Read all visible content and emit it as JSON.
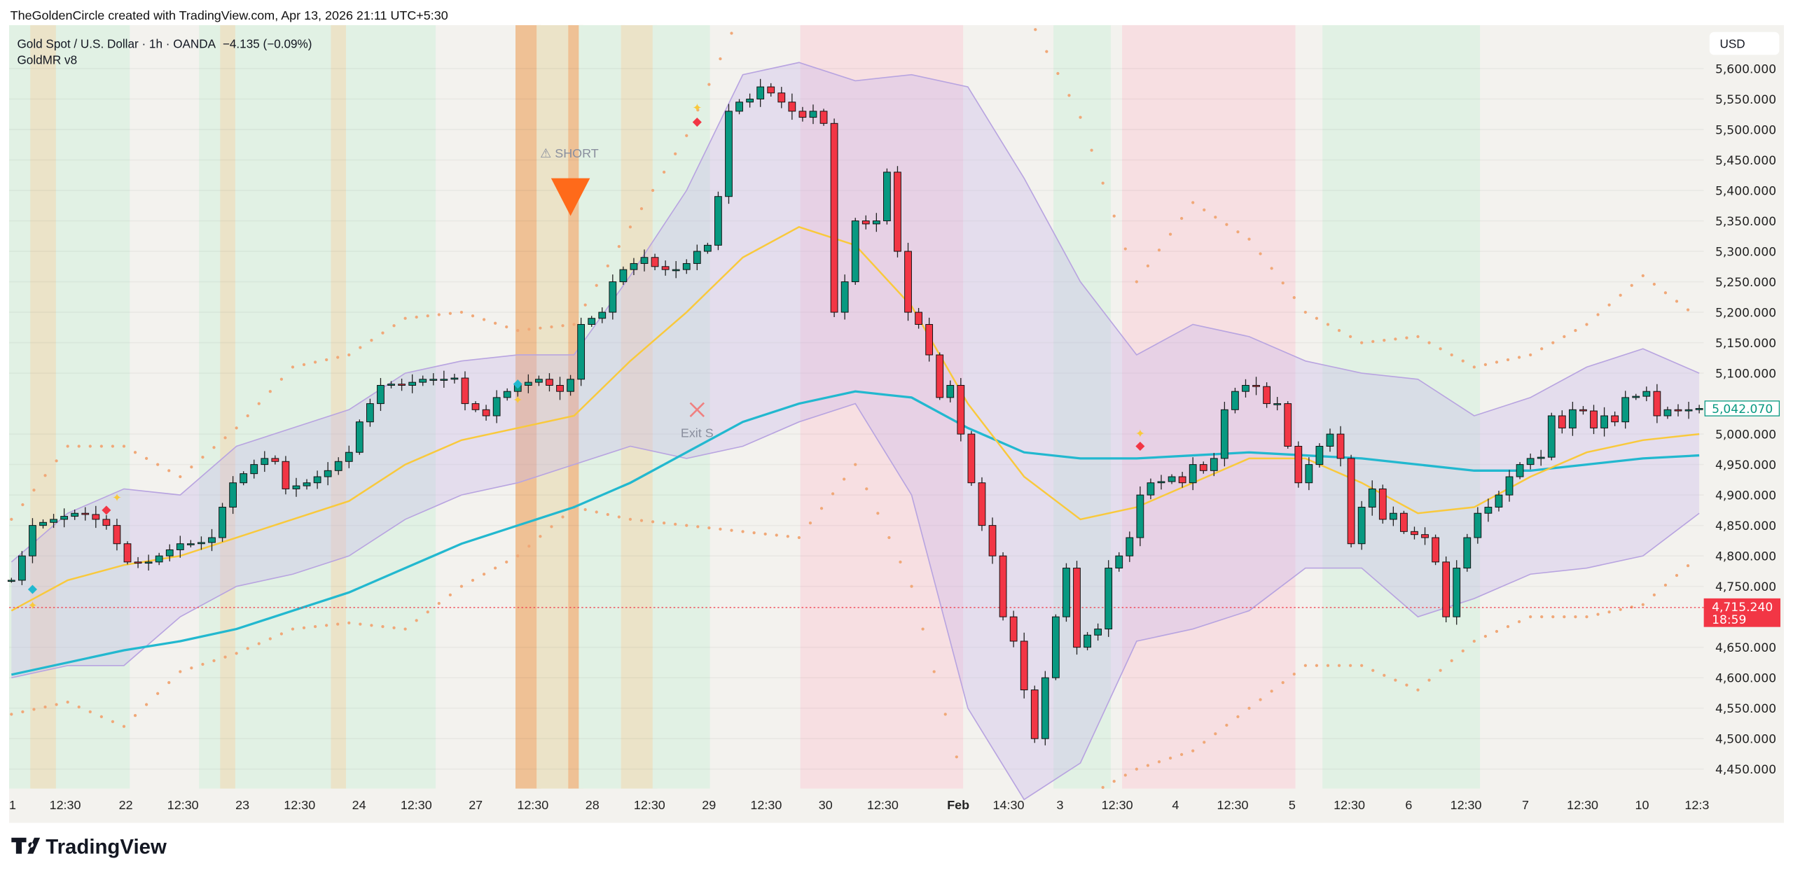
{
  "header": {
    "credit": "TheGoldenCircle created with TradingView.com, Apr 13, 2026 21:11 UTC+5:30",
    "symbol_line": "Gold Spot / U.S. Dollar · 1h · OANDA",
    "change": "−4.135 (−0.09%)",
    "indicator": "GoldMR v8"
  },
  "footer": {
    "logo_text": "TradingView"
  },
  "colors": {
    "up": "#089981",
    "down": "#f23645",
    "ema": "#f9c93c",
    "sma": "#22b8cf",
    "band_fill": "#c9b8ec",
    "band_line": "#b8a4e0",
    "outer_dots": "#f0a878",
    "zone_green": "#e1f1e4",
    "zone_pink": "#f7dfe2",
    "zone_orange": "#efc195",
    "zone_beige": "#ebe3c8",
    "background": "#f3f2ee",
    "signal": "#ff6a1a"
  },
  "chart_data": {
    "type": "candlestick",
    "title": "",
    "currency": "USD",
    "ylim": [
      4420,
      5650
    ],
    "y_ticks": [
      "5,600.000",
      "5,550.000",
      "5,500.000",
      "5,450.000",
      "5,400.000",
      "5,350.000",
      "5,300.000",
      "5,250.000",
      "5,200.000",
      "5,150.000",
      "5,100.000",
      "5,000.000",
      "4,950.000",
      "4,900.000",
      "4,850.000",
      "4,800.000",
      "4,750.000",
      "4,650.000",
      "4,600.000",
      "4,550.000",
      "4,500.000",
      "4,450.000"
    ],
    "y_tick_values": [
      5600,
      5550,
      5500,
      5450,
      5400,
      5350,
      5300,
      5250,
      5200,
      5150,
      5100,
      5000,
      4950,
      4900,
      4850,
      4800,
      4750,
      4650,
      4600,
      4550,
      4500,
      4450
    ],
    "x_ticks": [
      "1",
      "12:30",
      "22",
      "12:30",
      "23",
      "12:30",
      "24",
      "12:30",
      "27",
      "12:30",
      "28",
      "12:30",
      "29",
      "12:30",
      "30",
      "12:30",
      "Feb",
      "14:30",
      "3",
      "12:30",
      "4",
      "12:30",
      "5",
      "12:30",
      "6",
      "12:30",
      "7",
      "12:30",
      "10",
      "12:3"
    ],
    "closes": [
      4760,
      4800,
      4850,
      4855,
      4860,
      4865,
      4870,
      4868,
      4860,
      4850,
      4820,
      4790,
      4788,
      4790,
      4800,
      4810,
      4820,
      4820,
      4822,
      4830,
      4880,
      4920,
      4935,
      4950,
      4960,
      4955,
      4910,
      4915,
      4920,
      4930,
      4940,
      4955,
      4970,
      5020,
      5050,
      5080,
      5082,
      5080,
      5085,
      5090,
      5090,
      5090,
      5092,
      5050,
      5040,
      5030,
      5060,
      5070,
      5080,
      5085,
      5090,
      5080,
      5070,
      5090,
      5180,
      5190,
      5200,
      5250,
      5270,
      5280,
      5290,
      5275,
      5270,
      5270,
      5280,
      5300,
      5310,
      5390,
      5530,
      5545,
      5550,
      5570,
      5560,
      5545,
      5530,
      5520,
      5530,
      5510,
      5200,
      5250,
      5350,
      5345,
      5350,
      5430,
      5300,
      5200,
      5180,
      5130,
      5060,
      5080,
      5000,
      4920,
      4850,
      4800,
      4700,
      4660,
      4580,
      4500,
      4600,
      4700,
      4780,
      4650,
      4670,
      4680,
      4780,
      4800,
      4830,
      4900,
      4920,
      4922,
      4930,
      4920,
      4950,
      4940,
      4960,
      5040,
      5070,
      5080,
      5078,
      5050,
      5050,
      4980,
      4920,
      4950,
      4980,
      5000,
      4960,
      4820,
      4880,
      4910,
      4860,
      4870,
      4840,
      4835,
      4830,
      4790,
      4700,
      4780,
      4830,
      4870,
      4880,
      4900,
      4930,
      4950,
      4960,
      4962,
      5030,
      5010,
      5040,
      5038,
      5010,
      5030,
      5020,
      5060,
      5062,
      5070,
      5030,
      5040,
      5038,
      5040,
      5042.07
    ],
    "ema_yellow": [
      4710,
      4760,
      4785,
      4800,
      4830,
      4860,
      4890,
      4950,
      4990,
      5010,
      5030,
      5120,
      5200,
      5290,
      5340,
      5310,
      5210,
      5050,
      4930,
      4860,
      4880,
      4920,
      4960,
      4960,
      4920,
      4870,
      4880,
      4930,
      4970,
      4990,
      5000
    ],
    "sma_cyan": [
      4605,
      4625,
      4645,
      4660,
      4680,
      4710,
      4740,
      4780,
      4820,
      4850,
      4880,
      4920,
      4970,
      5020,
      5050,
      5070,
      5060,
      5010,
      4970,
      4960,
      4960,
      4965,
      4970,
      4965,
      4960,
      4950,
      4940,
      4940,
      4950,
      4960,
      4965
    ],
    "band_upper": [
      4790,
      4870,
      4910,
      4900,
      4980,
      5010,
      5040,
      5100,
      5120,
      5130,
      5130,
      5260,
      5400,
      5590,
      5610,
      5580,
      5590,
      5570,
      5420,
      5250,
      5130,
      5180,
      5160,
      5120,
      5100,
      5090,
      5030,
      5060,
      5110,
      5140,
      5100
    ],
    "band_lower": [
      4600,
      4620,
      4620,
      4700,
      4750,
      4770,
      4800,
      4860,
      4900,
      4920,
      4950,
      4980,
      4960,
      4980,
      5020,
      5050,
      4900,
      4550,
      4400,
      4460,
      4660,
      4680,
      4710,
      4780,
      4780,
      4700,
      4730,
      4770,
      4780,
      4800,
      4870
    ],
    "outer_upper": [
      4860,
      4980,
      4980,
      4930,
      5010,
      5110,
      5130,
      5190,
      5200,
      5170,
      5180,
      5340,
      5490,
      5700,
      5700,
      5700,
      5700,
      5700,
      5700,
      5520,
      5250,
      5380,
      5320,
      5200,
      5150,
      5160,
      5110,
      5130,
      5180,
      5260,
      5190
    ],
    "outer_lower": [
      4540,
      4560,
      4520,
      4610,
      4640,
      4680,
      4690,
      4680,
      4750,
      4800,
      4880,
      4860,
      4850,
      4840,
      4830,
      4950,
      4750,
      4400,
      4400,
      4400,
      4450,
      4480,
      4550,
      4620,
      4620,
      4580,
      4660,
      4700,
      4700,
      4720,
      4800
    ],
    "zones_bar_index": [
      {
        "from": 0,
        "to": 11,
        "kind": "green"
      },
      {
        "from": 2,
        "to": 4,
        "kind": "beige"
      },
      {
        "from": 18,
        "to": 40,
        "kind": "green"
      },
      {
        "from": 20,
        "to": 21,
        "kind": "beige"
      },
      {
        "from": 30.5,
        "to": 31.5,
        "kind": "beige"
      },
      {
        "from": 48,
        "to": 50,
        "kind": "orange"
      },
      {
        "from": 50,
        "to": 53,
        "kind": "beige"
      },
      {
        "from": 53,
        "to": 54,
        "kind": "orange"
      },
      {
        "from": 54,
        "to": 58,
        "kind": "green"
      },
      {
        "from": 58,
        "to": 61,
        "kind": "beige"
      },
      {
        "from": 61,
        "to": 66,
        "kind": "green"
      },
      {
        "from": 75,
        "to": 90,
        "kind": "pink"
      },
      {
        "from": 99,
        "to": 104,
        "kind": "green"
      },
      {
        "from": 105.5,
        "to": 121.5,
        "kind": "pink"
      },
      {
        "from": 124.5,
        "to": 139,
        "kind": "green"
      }
    ],
    "last_price": {
      "label": "5,042.070"
    },
    "current_price": {
      "value": 4715.24,
      "label": "4,715.240",
      "countdown": "18:59"
    },
    "annotations": {
      "short_label": "⚠ SHORT",
      "exit_label": "Exit S",
      "short_signal": {
        "bar": 53,
        "price": 5360
      },
      "exit_signal": {
        "bar": 65,
        "price": 5040
      },
      "diamonds": [
        {
          "bar": 2,
          "price": 4745,
          "color": "cyan"
        },
        {
          "bar": 48,
          "price": 5082,
          "color": "cyan"
        },
        {
          "bar": 9,
          "price": 4875,
          "color": "red"
        },
        {
          "bar": 65,
          "price": 5512,
          "color": "red"
        },
        {
          "bar": 107,
          "price": 4980,
          "color": "red"
        }
      ],
      "stars": [
        {
          "bar": 2,
          "price": 4718
        },
        {
          "bar": 10,
          "price": 4895
        },
        {
          "bar": 48,
          "price": 5055
        },
        {
          "bar": 65,
          "price": 5535
        },
        {
          "bar": 107,
          "price": 5000
        }
      ]
    }
  }
}
